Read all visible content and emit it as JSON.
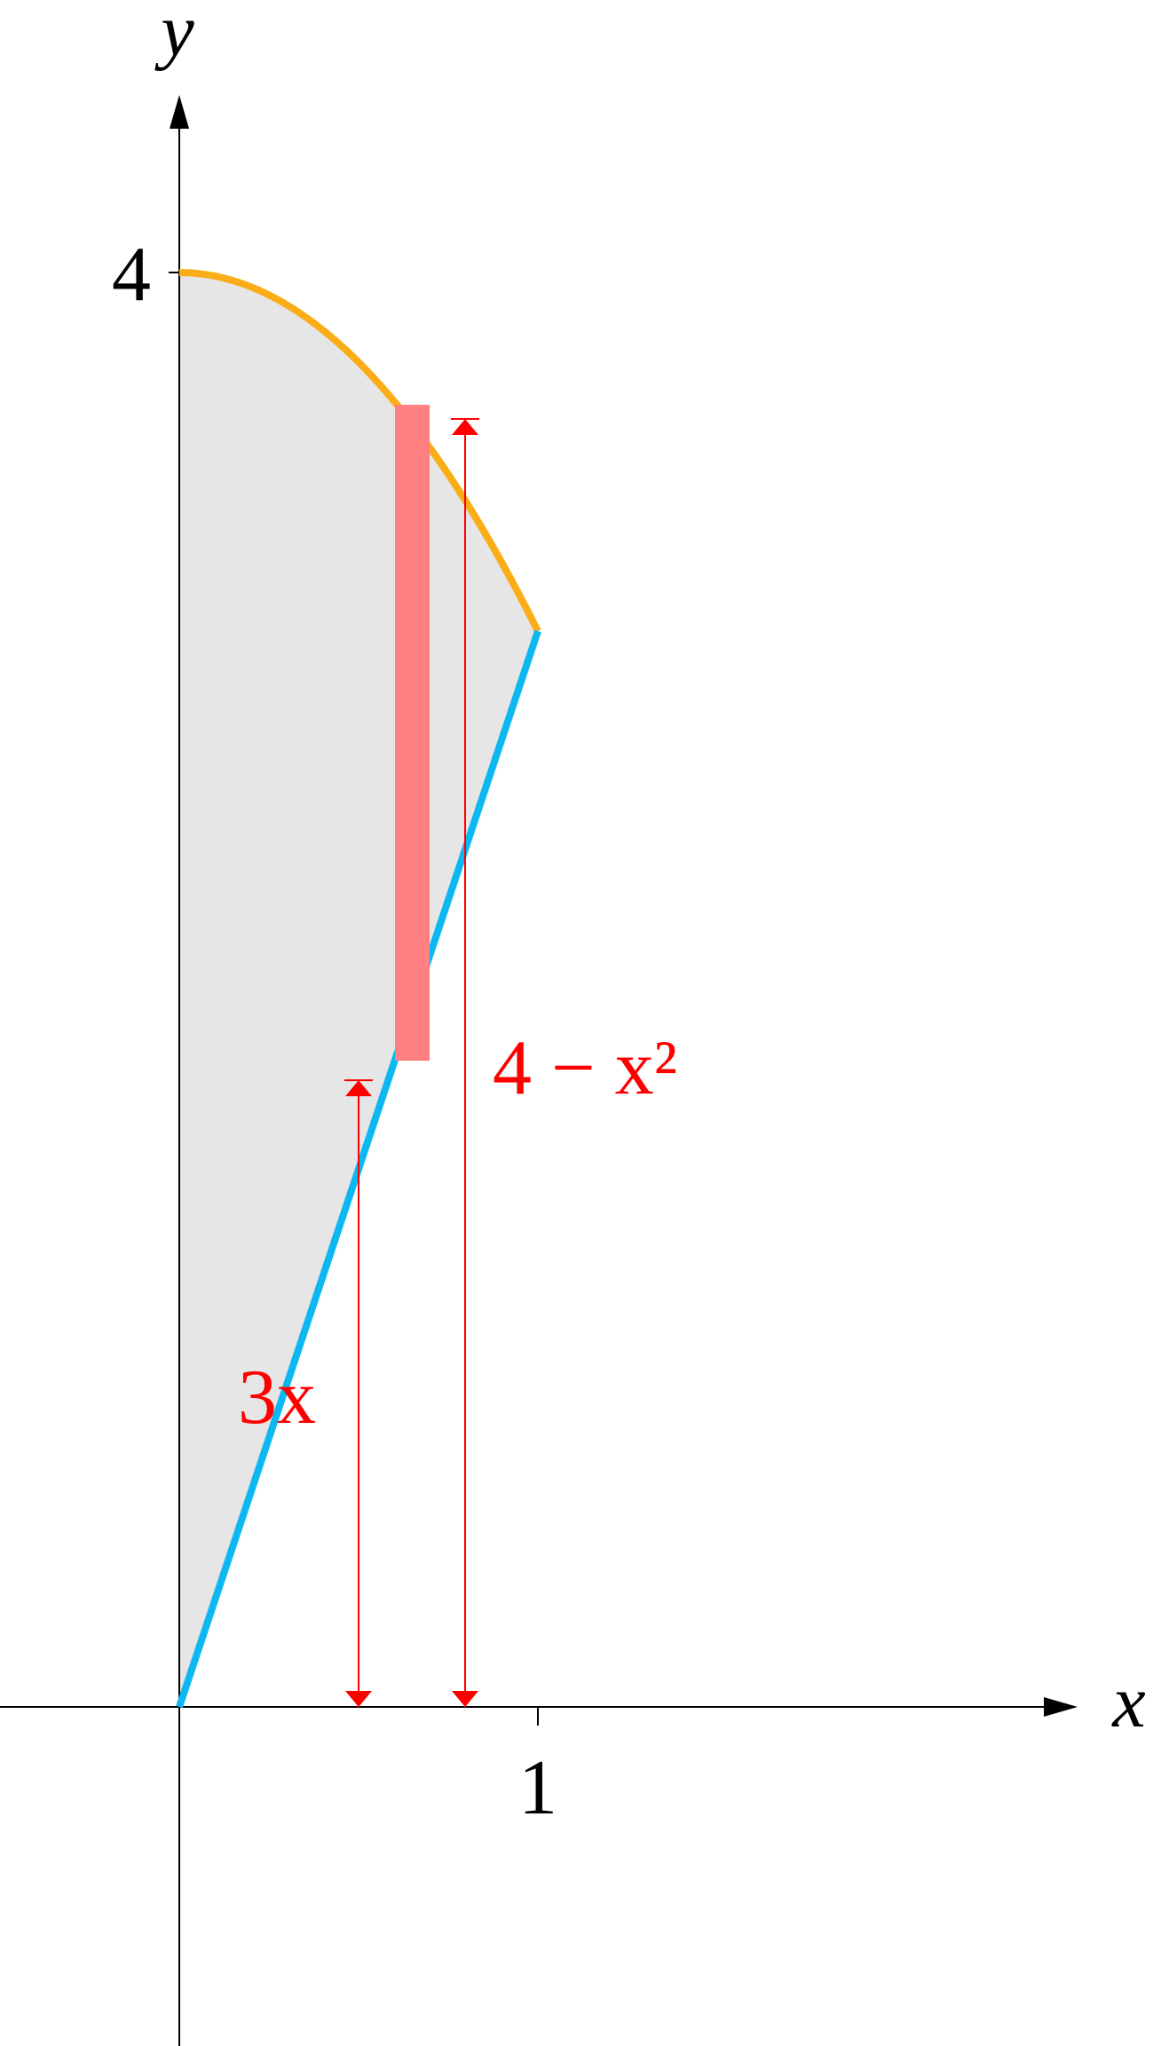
{
  "axes": {
    "x_label": "x",
    "y_label": "y",
    "x_tick_label": "1",
    "y_tick_label": "4"
  },
  "labels": {
    "lower_curve": "3x",
    "upper_curve": "4 − x²"
  }
}
